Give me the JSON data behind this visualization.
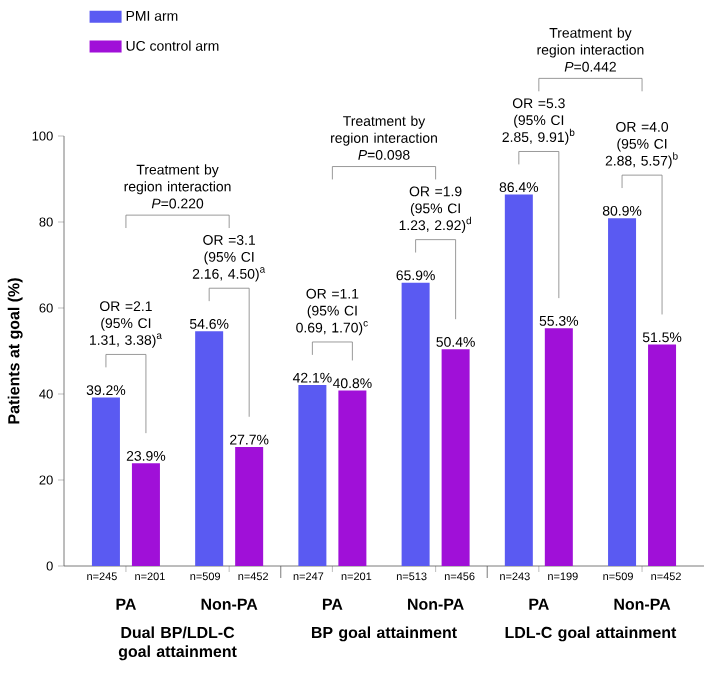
{
  "chart_data": {
    "type": "bar",
    "categories": [
      "PA",
      "Non-PA",
      "PA",
      "Non-PA",
      "PA",
      "Non-PA"
    ],
    "series": [
      {
        "name": "PMI arm",
        "color": "#5a5af2",
        "values": [
          39.2,
          54.6,
          42.1,
          65.9,
          86.4,
          80.9
        ],
        "value_labels": [
          "39.2%",
          "54.6%",
          "42.1%",
          "65.9%",
          "86.4%",
          "80.9%"
        ]
      },
      {
        "name": "UC control arm",
        "color": "#a010d8",
        "values": [
          23.9,
          27.7,
          40.8,
          50.4,
          55.3,
          51.5
        ],
        "value_labels": [
          "23.9%",
          "27.7%",
          "40.8%",
          "50.4%",
          "55.3%",
          "51.5%"
        ]
      }
    ],
    "ylabel": "Patients at goal (%)",
    "ylim": [
      0,
      100
    ],
    "yticks": [
      0,
      20,
      40,
      60,
      80,
      100
    ],
    "legend": "top left",
    "grid": false,
    "annotations": [
      "Treatment by region interaction *P*=0.220",
      "Treatment by region interaction *P*=0.098",
      "Treatment by region interaction *P*=0.442",
      "OR =2.1 (95% CI 1.31, 3.38)$^{a}$",
      "OR =3.1 (95% CI 2.16, 4.50)$^{a}$",
      "OR =1.1 (95% CI 0.69, 1.70)$^{c}$",
      "OR =1.9 (95% CI 1.23, 2.92)$^{d}$",
      "OR =5.3 (95% CI 2.85, 9.91)$^{b}$",
      "OR =4.0 (95% CI 2.88, 5.57)$^{b}$",
      "n=245",
      "n=201",
      "n=509",
      "n=452",
      "n=247",
      "n=201",
      "n=513",
      "n=456",
      "n=243",
      "n=199",
      "n=509",
      "n=452",
      "Dual BP/LDL-C goal attainment",
      "BP goal attainment",
      "LDL-C goal attainment"
    ]
  }
}
